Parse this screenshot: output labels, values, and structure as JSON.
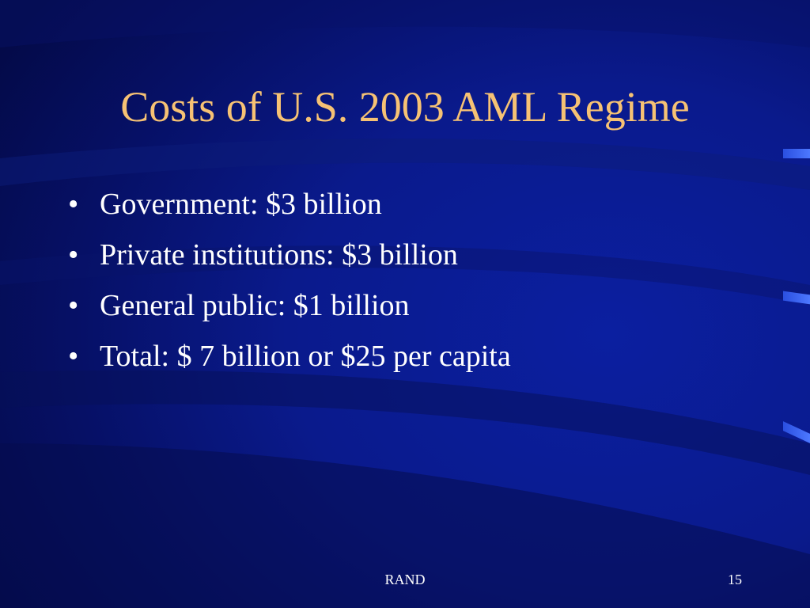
{
  "slide": {
    "title": "Costs of U.S. 2003 AML Regime",
    "bullet_glyph": "•",
    "bullets": [
      "Government:  $3 billion",
      "Private institutions:  $3 billion",
      "General public:  $1 billion",
      "Total: $ 7 billion or $25 per capita"
    ],
    "footer": "RAND",
    "page_number": "15"
  },
  "colors": {
    "background": "#0a1a8c",
    "title": "#f6c274",
    "text": "#ffffff",
    "accent": "#3a63f0"
  }
}
